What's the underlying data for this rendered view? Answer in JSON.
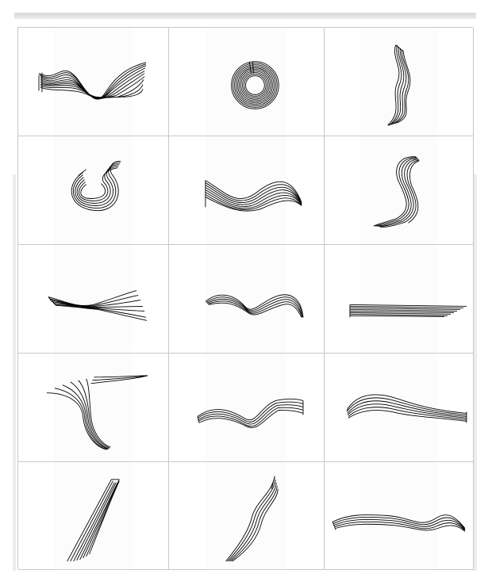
{
  "gallery": {
    "item_count": 15,
    "columns": 3,
    "rows": 5,
    "items": [
      {
        "icon": "twisted-ribbon-brush-icon"
      },
      {
        "icon": "spiral-ring-brush-icon"
      },
      {
        "icon": "vertical-twist-brush-icon"
      },
      {
        "icon": "hook-curl-brush-icon"
      },
      {
        "icon": "wave-ribbon-brush-icon"
      },
      {
        "icon": "s-curve-brush-icon"
      },
      {
        "icon": "flat-twist-brush-icon"
      },
      {
        "icon": "double-wave-brush-icon"
      },
      {
        "icon": "straight-band-brush-icon"
      },
      {
        "icon": "fan-sweep-brush-icon"
      },
      {
        "icon": "long-wave-ribbon-brush-icon"
      },
      {
        "icon": "tapered-wave-brush-icon"
      },
      {
        "icon": "diagonal-fan-brush-icon"
      },
      {
        "icon": "rising-streak-brush-icon"
      },
      {
        "icon": "flat-wave-band-brush-icon"
      }
    ]
  }
}
